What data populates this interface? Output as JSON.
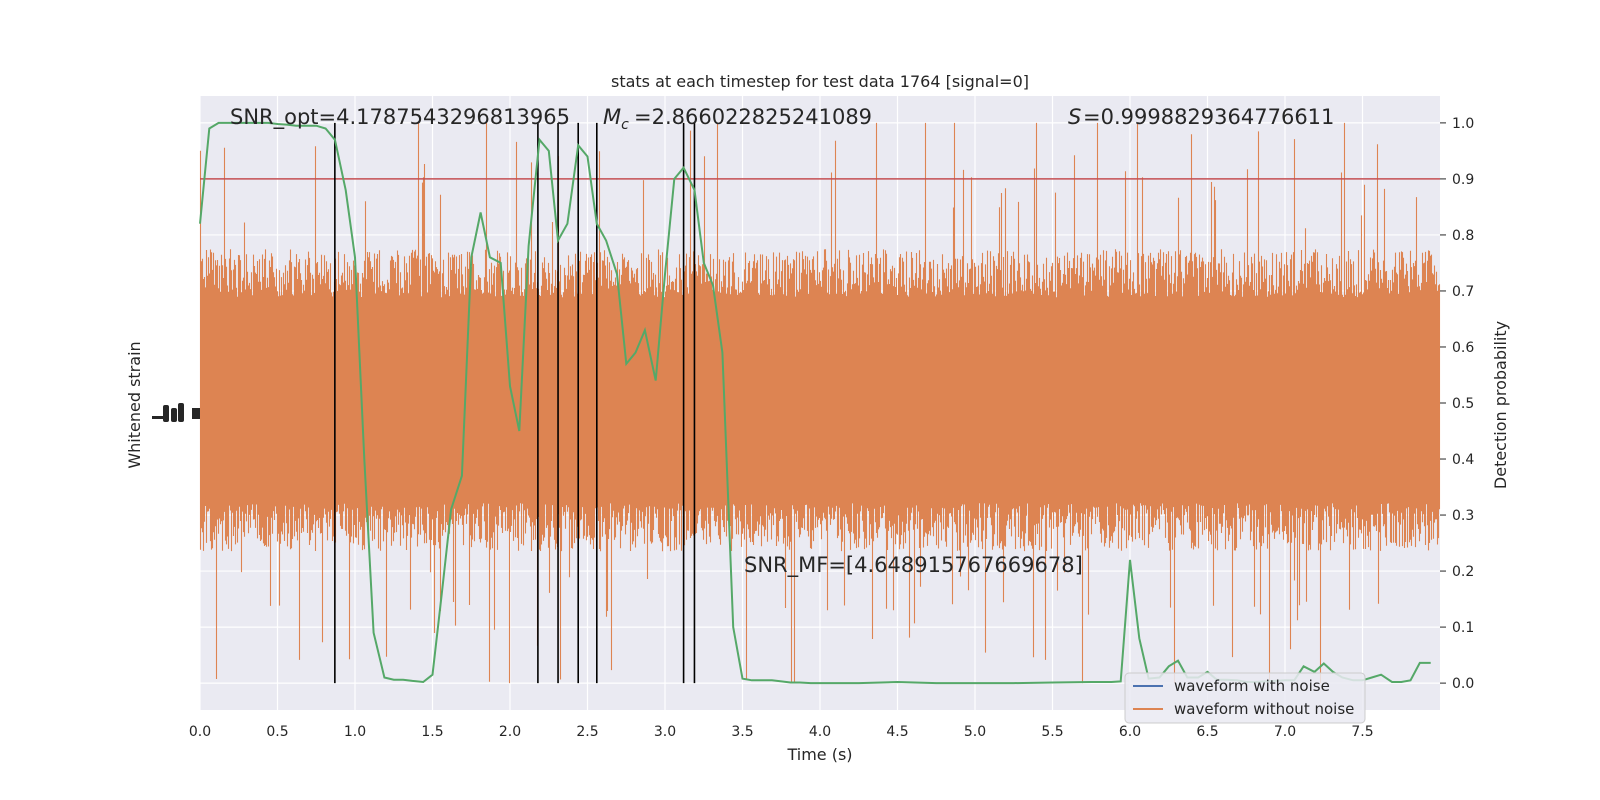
{
  "chart_data": {
    "type": "line",
    "title": "stats at each timestep for test data 1764 [signal=0]",
    "xlabel": "Time (s)",
    "ylabel_left": "Whitened strain",
    "ylabel_right": "Detection probability",
    "xlim": [
      0,
      8
    ],
    "ylim_right": [
      -0.048,
      1.048
    ],
    "x_ticks": [
      "0.0",
      "0.5",
      "1.0",
      "1.5",
      "2.0",
      "2.5",
      "3.0",
      "3.5",
      "4.0",
      "4.5",
      "5.0",
      "5.5",
      "6.0",
      "6.5",
      "7.0",
      "7.5"
    ],
    "y_ticks_right": [
      "0.0",
      "0.1",
      "0.2",
      "0.3",
      "0.4",
      "0.5",
      "0.6",
      "0.7",
      "0.8",
      "0.9",
      "1.0"
    ],
    "grid": true,
    "legend": {
      "placement": "lower-right",
      "entries": [
        {
          "label": "waveform with noise",
          "color": "#4c72b0"
        },
        {
          "label": "waveform without noise",
          "color": "#dd8452"
        }
      ]
    },
    "annotations": {
      "snr_opt": "SNR_opt=4.1787543296813965",
      "mc": "=2.866022825241089",
      "s": "=0.9998829364776611",
      "snr_mf": "SNR_MF=[4.648915767669678]"
    },
    "threshold": {
      "value": 0.9,
      "color": "#c44e52"
    },
    "vertical_lines_x": [
      0.87,
      2.18,
      2.31,
      2.44,
      2.56,
      3.12,
      3.19
    ],
    "detection_probability": {
      "color": "#55a868",
      "x": [
        0.0,
        0.06,
        0.12,
        0.18,
        0.25,
        0.31,
        0.37,
        0.44,
        0.5,
        0.56,
        0.62,
        0.69,
        0.75,
        0.81,
        0.87,
        0.94,
        1.0,
        1.06,
        1.12,
        1.19,
        1.25,
        1.31,
        1.37,
        1.44,
        1.5,
        1.56,
        1.62,
        1.69,
        1.75,
        1.81,
        1.87,
        1.94,
        2.0,
        2.06,
        2.12,
        2.19,
        2.25,
        2.31,
        2.37,
        2.44,
        2.5,
        2.56,
        2.62,
        2.69,
        2.75,
        2.81,
        2.87,
        2.94,
        3.0,
        3.06,
        3.12,
        3.19,
        3.25,
        3.31,
        3.37,
        3.44,
        3.5,
        3.56,
        3.62,
        3.69,
        3.75,
        3.81,
        3.87,
        3.94,
        4.0,
        4.25,
        4.5,
        4.75,
        5.0,
        5.25,
        5.5,
        5.75,
        5.88,
        5.94,
        6.0,
        6.06,
        6.12,
        6.19,
        6.25,
        6.31,
        6.37,
        6.44,
        6.5,
        6.56,
        6.62,
        6.69,
        6.75,
        6.81,
        6.87,
        6.94,
        7.0,
        7.06,
        7.12,
        7.19,
        7.25,
        7.31,
        7.37,
        7.44,
        7.5,
        7.56,
        7.62,
        7.69,
        7.75,
        7.81,
        7.87,
        7.94
      ],
      "y": [
        0.82,
        0.99,
        1.0,
        1.0,
        1.0,
        1.0,
        1.0,
        1.0,
        0.998,
        0.997,
        0.995,
        0.995,
        0.995,
        0.99,
        0.97,
        0.88,
        0.76,
        0.4,
        0.09,
        0.01,
        0.006,
        0.006,
        0.004,
        0.002,
        0.015,
        0.16,
        0.31,
        0.37,
        0.76,
        0.84,
        0.76,
        0.75,
        0.53,
        0.45,
        0.78,
        0.97,
        0.95,
        0.79,
        0.82,
        0.96,
        0.94,
        0.82,
        0.79,
        0.73,
        0.57,
        0.59,
        0.63,
        0.54,
        0.73,
        0.9,
        0.92,
        0.88,
        0.75,
        0.71,
        0.59,
        0.1,
        0.008,
        0.005,
        0.005,
        0.005,
        0.003,
        0.001,
        0.001,
        0.0,
        0.0,
        0.0,
        0.002,
        0.0,
        0.0,
        0.0,
        0.001,
        0.002,
        0.002,
        0.003,
        0.22,
        0.08,
        0.008,
        0.01,
        0.03,
        0.04,
        0.01,
        0.01,
        0.02,
        0.006,
        0.006,
        0.005,
        0.002,
        0.002,
        0.003,
        0.004,
        0.005,
        0.005,
        0.03,
        0.02,
        0.035,
        0.02,
        0.01,
        0.005,
        0.005,
        0.01,
        0.015,
        0.002,
        0.002,
        0.005,
        0.036,
        0.036
      ]
    },
    "waveform_without_noise": {
      "color": "#dd8452",
      "note_range_probability_units": [
        0.0,
        1.0
      ],
      "typical_band_probability_units": [
        0.26,
        0.75
      ]
    }
  }
}
